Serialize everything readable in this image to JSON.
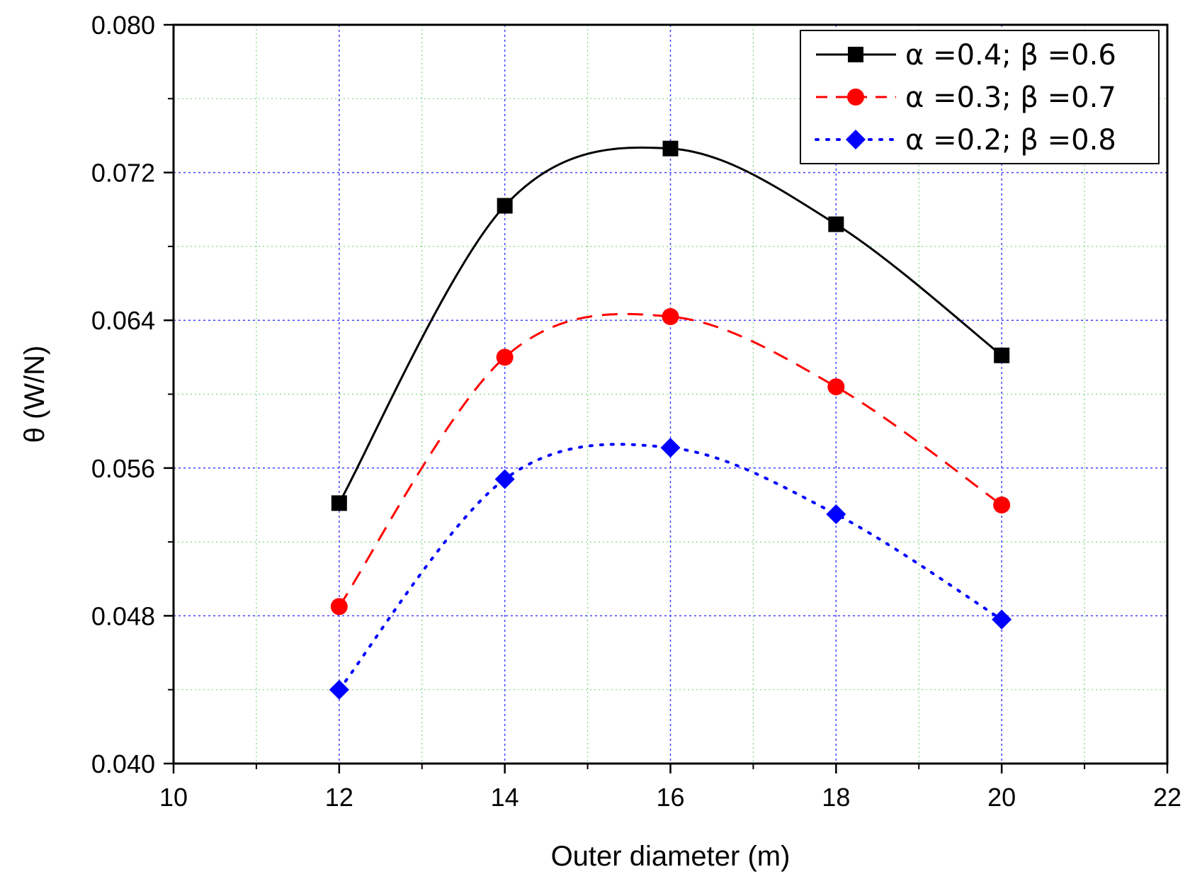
{
  "chart_data": {
    "type": "line",
    "xlabel": "Outer diameter (m)",
    "ylabel": "θ (W/N)",
    "xlim": [
      10,
      22
    ],
    "ylim": [
      0.04,
      0.08
    ],
    "x_ticks": [
      "10",
      "12",
      "14",
      "16",
      "18",
      "20",
      "22"
    ],
    "y_ticks": [
      "0.040",
      "0.048",
      "0.056",
      "0.064",
      "0.072",
      "0.080"
    ],
    "grid": true,
    "legend_position": "top-right",
    "series": [
      {
        "name": "α =0.4; β =0.6",
        "x": [
          12,
          14,
          16,
          18,
          20
        ],
        "y": [
          0.0541,
          0.0702,
          0.0733,
          0.0692,
          0.0621
        ],
        "color": "#000000",
        "marker": "square",
        "line_style": "solid"
      },
      {
        "name": "α =0.3; β =0.7",
        "x": [
          12,
          14,
          16,
          18,
          20
        ],
        "y": [
          0.0485,
          0.062,
          0.0642,
          0.0604,
          0.054
        ],
        "color": "#ff0000",
        "marker": "circle",
        "line_style": "dashed"
      },
      {
        "name": "α =0.2; β =0.8",
        "x": [
          12,
          14,
          16,
          18,
          20
        ],
        "y": [
          0.044,
          0.0554,
          0.0571,
          0.0535,
          0.0478
        ],
        "color": "#0000ff",
        "marker": "diamond",
        "line_style": "dotted"
      }
    ]
  }
}
